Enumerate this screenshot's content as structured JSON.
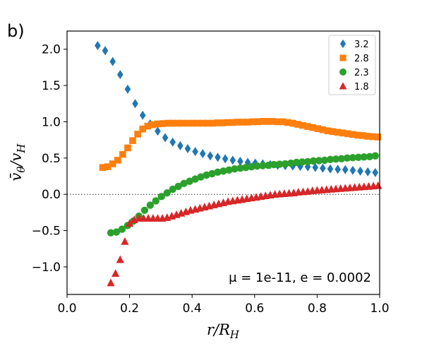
{
  "chart_data": {
    "type": "scatter",
    "panel_label": "b)",
    "xlabel": "r/R_H",
    "ylabel": "v̄_θ/v_H",
    "xlim": [
      0.0,
      1.0
    ],
    "ylim": [
      -1.38,
      2.25
    ],
    "xticks": [
      "0.0",
      "0.2",
      "0.4",
      "0.6",
      "0.8",
      "1.0"
    ],
    "yticks": [
      "2.0",
      "1.5",
      "1.0",
      "0.5",
      "0.0",
      "−0.5",
      "−1.0"
    ],
    "ytick_values": [
      2.0,
      1.5,
      1.0,
      0.5,
      0.0,
      -0.5,
      -1.0
    ],
    "xtick_values": [
      0.0,
      0.2,
      0.4,
      0.6,
      0.8,
      1.0
    ],
    "grid": false,
    "reference_line": {
      "y": 0.0,
      "style": "dotted"
    },
    "legend_position": "top-right",
    "annotation": "μ = 1e-11, e = 0.0002",
    "series": [
      {
        "name": "3.2",
        "marker": "diamond",
        "color": "#1f77b4",
        "x": [
          0.098,
          0.122,
          0.146,
          0.17,
          0.194,
          0.218,
          0.242,
          0.266,
          0.29,
          0.314,
          0.338,
          0.362,
          0.386,
          0.41,
          0.434,
          0.458,
          0.482,
          0.506,
          0.53,
          0.554,
          0.578,
          0.602,
          0.626,
          0.65,
          0.674,
          0.698,
          0.722,
          0.746,
          0.77,
          0.794,
          0.818,
          0.842,
          0.866,
          0.89,
          0.914,
          0.938,
          0.962,
          0.986
        ],
        "y": [
          2.05,
          1.98,
          1.83,
          1.65,
          1.45,
          1.25,
          1.09,
          0.97,
          0.87,
          0.78,
          0.72,
          0.67,
          0.63,
          0.59,
          0.56,
          0.53,
          0.51,
          0.49,
          0.47,
          0.455,
          0.44,
          0.43,
          0.42,
          0.41,
          0.4,
          0.395,
          0.39,
          0.385,
          0.38,
          0.37,
          0.36,
          0.35,
          0.345,
          0.34,
          0.33,
          0.32,
          0.31,
          0.3
        ]
      },
      {
        "name": "2.8",
        "marker": "square",
        "color": "#ff7f0e",
        "x": [
          0.114,
          0.13,
          0.146,
          0.162,
          0.178,
          0.194,
          0.21,
          0.226,
          0.242,
          0.258,
          0.274,
          0.29,
          0.306,
          0.322,
          0.338,
          0.354,
          0.37,
          0.386,
          0.402,
          0.418,
          0.434,
          0.45,
          0.466,
          0.482,
          0.498,
          0.514,
          0.53,
          0.546,
          0.562,
          0.578,
          0.594,
          0.61,
          0.626,
          0.642,
          0.658,
          0.674,
          0.69,
          0.706,
          0.722,
          0.738,
          0.754,
          0.77,
          0.786,
          0.802,
          0.818,
          0.834,
          0.85,
          0.866,
          0.882,
          0.898,
          0.914,
          0.93,
          0.946,
          0.962,
          0.978,
          0.994
        ],
        "y": [
          0.37,
          0.38,
          0.42,
          0.47,
          0.55,
          0.64,
          0.74,
          0.83,
          0.9,
          0.94,
          0.96,
          0.97,
          0.975,
          0.98,
          0.98,
          0.98,
          0.98,
          0.98,
          0.98,
          0.98,
          0.98,
          0.98,
          0.98,
          0.985,
          0.985,
          0.99,
          0.99,
          0.995,
          0.995,
          0.995,
          1.0,
          1.0,
          1.005,
          1.005,
          1.005,
          1.0,
          1.0,
          0.99,
          0.98,
          0.965,
          0.95,
          0.935,
          0.92,
          0.905,
          0.89,
          0.875,
          0.865,
          0.855,
          0.845,
          0.835,
          0.825,
          0.815,
          0.81,
          0.8,
          0.795,
          0.79
        ]
      },
      {
        "name": "2.3",
        "marker": "circle",
        "color": "#2ca02c",
        "x": [
          0.14,
          0.158,
          0.176,
          0.194,
          0.212,
          0.23,
          0.248,
          0.266,
          0.284,
          0.302,
          0.32,
          0.338,
          0.356,
          0.374,
          0.392,
          0.41,
          0.428,
          0.446,
          0.464,
          0.482,
          0.5,
          0.518,
          0.536,
          0.554,
          0.572,
          0.59,
          0.608,
          0.626,
          0.644,
          0.662,
          0.68,
          0.698,
          0.716,
          0.734,
          0.752,
          0.77,
          0.788,
          0.806,
          0.824,
          0.842,
          0.86,
          0.878,
          0.896,
          0.914,
          0.932,
          0.95,
          0.968,
          0.986
        ],
        "y": [
          -0.53,
          -0.52,
          -0.48,
          -0.43,
          -0.37,
          -0.3,
          -0.22,
          -0.15,
          -0.09,
          -0.03,
          0.02,
          0.07,
          0.11,
          0.15,
          0.18,
          0.21,
          0.24,
          0.265,
          0.285,
          0.305,
          0.32,
          0.335,
          0.35,
          0.36,
          0.37,
          0.38,
          0.39,
          0.395,
          0.4,
          0.41,
          0.415,
          0.42,
          0.43,
          0.44,
          0.445,
          0.45,
          0.46,
          0.465,
          0.47,
          0.48,
          0.485,
          0.49,
          0.5,
          0.505,
          0.51,
          0.515,
          0.52,
          0.53
        ]
      },
      {
        "name": "1.8",
        "marker": "triangle",
        "color": "#d62728",
        "x": [
          0.14,
          0.155,
          0.17,
          0.185,
          0.2,
          0.215,
          0.23,
          0.245,
          0.26,
          0.275,
          0.29,
          0.305,
          0.32,
          0.335,
          0.35,
          0.365,
          0.38,
          0.395,
          0.41,
          0.425,
          0.44,
          0.455,
          0.47,
          0.485,
          0.5,
          0.515,
          0.53,
          0.545,
          0.56,
          0.575,
          0.59,
          0.605,
          0.62,
          0.635,
          0.65,
          0.665,
          0.68,
          0.695,
          0.71,
          0.725,
          0.74,
          0.755,
          0.77,
          0.785,
          0.8,
          0.815,
          0.83,
          0.845,
          0.86,
          0.875,
          0.89,
          0.905,
          0.92,
          0.935,
          0.95,
          0.965,
          0.98,
          0.995
        ],
        "y": [
          -1.22,
          -1.09,
          -0.9,
          -0.65,
          -0.4,
          -0.35,
          -0.33,
          -0.33,
          -0.33,
          -0.33,
          -0.33,
          -0.33,
          -0.32,
          -0.3,
          -0.28,
          -0.26,
          -0.24,
          -0.22,
          -0.205,
          -0.19,
          -0.175,
          -0.16,
          -0.145,
          -0.13,
          -0.115,
          -0.1,
          -0.09,
          -0.08,
          -0.07,
          -0.06,
          -0.05,
          -0.04,
          -0.03,
          -0.02,
          -0.01,
          0.0,
          0.005,
          0.01,
          0.015,
          0.02,
          0.03,
          0.035,
          0.04,
          0.05,
          0.055,
          0.06,
          0.065,
          0.07,
          0.075,
          0.08,
          0.085,
          0.09,
          0.095,
          0.1,
          0.105,
          0.11,
          0.115,
          0.12
        ]
      }
    ]
  }
}
